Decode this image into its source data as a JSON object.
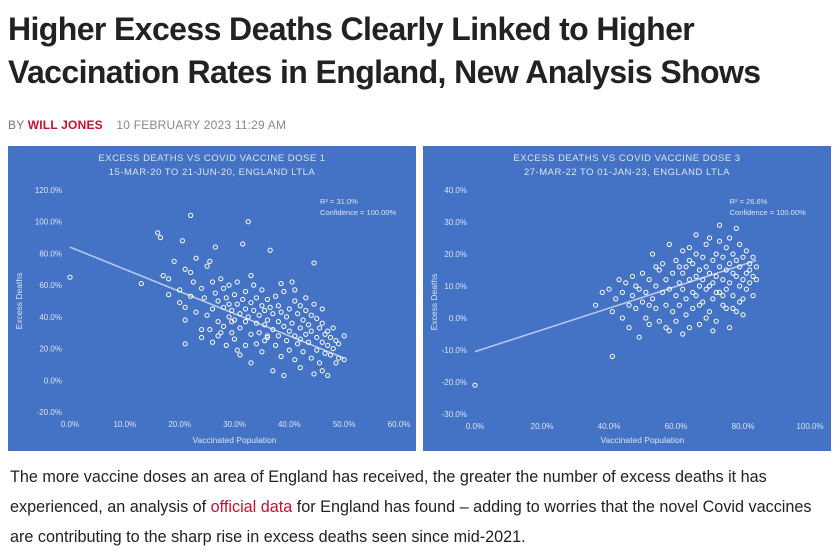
{
  "headline": "Higher Excess Deaths Clearly Linked to Higher Vaccination Rates in England, New Analysis Shows",
  "byline": {
    "prefix": "BY",
    "author": "WILL JONES",
    "date": "10 FEBRUARY 2023 11:29 AM"
  },
  "article": {
    "text_before": "The more vaccine doses an area of England has received, the greater the number of excess deaths it has experienced, an analysis of ",
    "link": "official data",
    "text_after": " for England has found – adding to worries that the novel Covid vaccines are contributing to the sharp rise in excess deaths seen since mid-2021."
  },
  "colors": {
    "chart_bg": "#4472c4",
    "author": "#c8102e",
    "link": "#c8102e"
  },
  "chart_data": [
    {
      "type": "scatter",
      "title": "EXCESS DEATHS VS COVID VACCINE DOSE 1",
      "subtitle": "15-MAR-20 TO 21-JUN-20, ENGLAND LTLA",
      "xlabel": "Vaccinated Population",
      "ylabel": "Excess Deaths",
      "xlim": [
        0,
        60
      ],
      "ylim": [
        -20,
        120
      ],
      "xticks": [
        "0.0%",
        "10.0%",
        "20.0%",
        "30.0%",
        "40.0%",
        "50.0%",
        "60.0%"
      ],
      "yticks": [
        "-20.0%",
        "0.0%",
        "20.0%",
        "40.0%",
        "60.0%",
        "80.0%",
        "100.0%",
        "120.0%"
      ],
      "annotation": [
        "R² = 31.0%",
        "Confidence = 100.00%"
      ],
      "trendline": [
        [
          0,
          84
        ],
        [
          50,
          14
        ]
      ],
      "points": [
        [
          0,
          65
        ],
        [
          13,
          61
        ],
        [
          16,
          93
        ],
        [
          16.5,
          90
        ],
        [
          17,
          66
        ],
        [
          18,
          64
        ],
        [
          18,
          54
        ],
        [
          19,
          75
        ],
        [
          20,
          49
        ],
        [
          20,
          57
        ],
        [
          20.5,
          88
        ],
        [
          21,
          70
        ],
        [
          21,
          46
        ],
        [
          21,
          38
        ],
        [
          21,
          23
        ],
        [
          22,
          104
        ],
        [
          22,
          68
        ],
        [
          22.5,
          62
        ],
        [
          22,
          53
        ],
        [
          23,
          77
        ],
        [
          23,
          43
        ],
        [
          24,
          58
        ],
        [
          24,
          32
        ],
        [
          24.5,
          52
        ],
        [
          25,
          72
        ],
        [
          25,
          41
        ],
        [
          25.5,
          75
        ],
        [
          25.5,
          32
        ],
        [
          26,
          45
        ],
        [
          26,
          62
        ],
        [
          26,
          24
        ],
        [
          26.5,
          55
        ],
        [
          27,
          37
        ],
        [
          27,
          50
        ],
        [
          27,
          28
        ],
        [
          27.5,
          64
        ],
        [
          28,
          58
        ],
        [
          28,
          46
        ],
        [
          28,
          34
        ],
        [
          28.5,
          22
        ],
        [
          28.5,
          52
        ],
        [
          29,
          40
        ],
        [
          29,
          60
        ],
        [
          29,
          48
        ],
        [
          29.5,
          30
        ],
        [
          29.5,
          44
        ],
        [
          30,
          54
        ],
        [
          30,
          38
        ],
        [
          30,
          26
        ],
        [
          30.5,
          48
        ],
        [
          30.5,
          62
        ],
        [
          31,
          33
        ],
        [
          31,
          42
        ],
        [
          31,
          16
        ],
        [
          31.5,
          51
        ],
        [
          31.5,
          86
        ],
        [
          32,
          45
        ],
        [
          32,
          37
        ],
        [
          32,
          56
        ],
        [
          32,
          22
        ],
        [
          32.5,
          100
        ],
        [
          32.5,
          40
        ],
        [
          33,
          29
        ],
        [
          33,
          49
        ],
        [
          33,
          11
        ],
        [
          33.5,
          44
        ],
        [
          33.5,
          60
        ],
        [
          34,
          36
        ],
        [
          34,
          52
        ],
        [
          34,
          23
        ],
        [
          34.5,
          41
        ],
        [
          34.5,
          30
        ],
        [
          35,
          47
        ],
        [
          35,
          57
        ],
        [
          35,
          18
        ],
        [
          35.5,
          35
        ],
        [
          35.5,
          44
        ],
        [
          36,
          27
        ],
        [
          36,
          51
        ],
        [
          36,
          38
        ],
        [
          36.5,
          82
        ],
        [
          36.5,
          46
        ],
        [
          37,
          32
        ],
        [
          37,
          42
        ],
        [
          37,
          6
        ],
        [
          37.5,
          22
        ],
        [
          37.5,
          53
        ],
        [
          38,
          37
        ],
        [
          38,
          47
        ],
        [
          38,
          28
        ],
        [
          38.5,
          15
        ],
        [
          38.5,
          43
        ],
        [
          39,
          34
        ],
        [
          39,
          56
        ],
        [
          39,
          3
        ],
        [
          39.5,
          25
        ],
        [
          39.5,
          40
        ],
        [
          40,
          31
        ],
        [
          40,
          45
        ],
        [
          40,
          19
        ],
        [
          40.5,
          62
        ],
        [
          40.5,
          36
        ],
        [
          41,
          28
        ],
        [
          41,
          50
        ],
        [
          41,
          13
        ],
        [
          41.5,
          42
        ],
        [
          41.5,
          23
        ],
        [
          42,
          33
        ],
        [
          42,
          47
        ],
        [
          42,
          8
        ],
        [
          42.5,
          38
        ],
        [
          42.5,
          18
        ],
        [
          43,
          29
        ],
        [
          43,
          44
        ],
        [
          43,
          52
        ],
        [
          43.5,
          24
        ],
        [
          43.5,
          35
        ],
        [
          44,
          14
        ],
        [
          44,
          31
        ],
        [
          44,
          41
        ],
        [
          44.5,
          4
        ],
        [
          44.5,
          74
        ],
        [
          45,
          27
        ],
        [
          45,
          39
        ],
        [
          45,
          19
        ],
        [
          45.5,
          33
        ],
        [
          45.5,
          11
        ],
        [
          46,
          24
        ],
        [
          46,
          36
        ],
        [
          46,
          6
        ],
        [
          46.5,
          29
        ],
        [
          46.5,
          17
        ],
        [
          47,
          31
        ],
        [
          47,
          22
        ],
        [
          47,
          3
        ],
        [
          47.5,
          27
        ],
        [
          47.5,
          16
        ],
        [
          48,
          33
        ],
        [
          48,
          20
        ],
        [
          48.5,
          25
        ],
        [
          48.5,
          11
        ],
        [
          49,
          23
        ],
        [
          49,
          14
        ],
        [
          50,
          28
        ],
        [
          50,
          13
        ],
        [
          27.5,
          30
        ],
        [
          33,
          66
        ],
        [
          29.5,
          37
        ],
        [
          36,
          28
        ],
        [
          41,
          57
        ],
        [
          38.5,
          61
        ],
        [
          44.5,
          48
        ],
        [
          35.5,
          25
        ],
        [
          30.5,
          19
        ],
        [
          42,
          26
        ],
        [
          46,
          45
        ],
        [
          26.5,
          84
        ],
        [
          24,
          27
        ]
      ]
    },
    {
      "type": "scatter",
      "title": "EXCESS DEATHS VS COVID VACCINE DOSE 3",
      "subtitle": "27-MAR-22 TO 01-JAN-23, ENGLAND LTLA",
      "xlabel": "Vaccinated Population",
      "ylabel": "Excess Deaths",
      "xlim": [
        0,
        100
      ],
      "ylim": [
        -30,
        40
      ],
      "xticks": [
        "0.0%",
        "20.0%",
        "40.0%",
        "60.0%",
        "80.0%",
        "100.0%"
      ],
      "yticks": [
        "-30.0%",
        "-20.0%",
        "-10.0%",
        "0.0%",
        "10.0%",
        "20.0%",
        "30.0%",
        "40.0%"
      ],
      "annotation": [
        "R² = 26.6%",
        "Confidence = 100.00%"
      ],
      "trendline": [
        [
          0,
          -10.5
        ],
        [
          84,
          18
        ]
      ],
      "points": [
        [
          0,
          -21
        ],
        [
          36,
          4
        ],
        [
          38,
          8
        ],
        [
          40,
          9
        ],
        [
          41,
          -12
        ],
        [
          41,
          2
        ],
        [
          42,
          6
        ],
        [
          43,
          12
        ],
        [
          44,
          0
        ],
        [
          44,
          8
        ],
        [
          45,
          11
        ],
        [
          46,
          4
        ],
        [
          46,
          -3
        ],
        [
          47,
          13
        ],
        [
          47,
          7
        ],
        [
          48,
          10
        ],
        [
          48,
          3
        ],
        [
          49,
          -6
        ],
        [
          49,
          9
        ],
        [
          50,
          14
        ],
        [
          50,
          5
        ],
        [
          51,
          8
        ],
        [
          51,
          0
        ],
        [
          52,
          12
        ],
        [
          52,
          -2
        ],
        [
          53,
          6
        ],
        [
          53,
          20
        ],
        [
          54,
          10
        ],
        [
          54,
          3
        ],
        [
          55,
          15
        ],
        [
          55,
          -1
        ],
        [
          56,
          8
        ],
        [
          56,
          17
        ],
        [
          57,
          4
        ],
        [
          57,
          12
        ],
        [
          58,
          -4
        ],
        [
          58,
          9
        ],
        [
          59,
          14
        ],
        [
          59,
          2
        ],
        [
          60,
          18
        ],
        [
          60,
          7
        ],
        [
          60,
          -1
        ],
        [
          61,
          11
        ],
        [
          61,
          4
        ],
        [
          62,
          21
        ],
        [
          62,
          9
        ],
        [
          62,
          14
        ],
        [
          63,
          6
        ],
        [
          63,
          16
        ],
        [
          63,
          1
        ],
        [
          64,
          12
        ],
        [
          64,
          22
        ],
        [
          64,
          -3
        ],
        [
          65,
          8
        ],
        [
          65,
          17
        ],
        [
          65,
          3
        ],
        [
          66,
          13
        ],
        [
          66,
          20
        ],
        [
          66,
          7
        ],
        [
          67,
          10
        ],
        [
          67,
          -2
        ],
        [
          67,
          15
        ],
        [
          68,
          19
        ],
        [
          68,
          5
        ],
        [
          68,
          12
        ],
        [
          69,
          23
        ],
        [
          69,
          9
        ],
        [
          69,
          16
        ],
        [
          70,
          14
        ],
        [
          70,
          2
        ],
        [
          70,
          25
        ],
        [
          71,
          11
        ],
        [
          71,
          18
        ],
        [
          71,
          6
        ],
        [
          72,
          20
        ],
        [
          72,
          13
        ],
        [
          72,
          -1
        ],
        [
          73,
          16
        ],
        [
          73,
          8
        ],
        [
          73,
          24
        ],
        [
          74,
          12
        ],
        [
          74,
          19
        ],
        [
          74,
          4
        ],
        [
          75,
          22
        ],
        [
          75,
          15
        ],
        [
          75,
          9
        ],
        [
          76,
          17
        ],
        [
          76,
          11
        ],
        [
          76,
          25
        ],
        [
          77,
          14
        ],
        [
          77,
          20
        ],
        [
          77,
          7
        ],
        [
          78,
          13
        ],
        [
          78,
          18
        ],
        [
          78,
          2
        ],
        [
          79,
          16
        ],
        [
          79,
          23
        ],
        [
          79,
          10
        ],
        [
          80,
          12
        ],
        [
          80,
          19
        ],
        [
          80,
          6
        ],
        [
          81,
          14
        ],
        [
          81,
          21
        ],
        [
          81,
          9
        ],
        [
          82,
          15
        ],
        [
          82,
          11
        ],
        [
          82,
          17
        ],
        [
          83,
          13
        ],
        [
          83,
          19
        ],
        [
          84,
          12
        ],
        [
          84,
          16
        ],
        [
          76,
          -3
        ],
        [
          78,
          28
        ],
        [
          66,
          26
        ],
        [
          71,
          -4
        ],
        [
          62,
          -5
        ],
        [
          58,
          23
        ],
        [
          64,
          18
        ],
        [
          69,
          0
        ],
        [
          73,
          29
        ],
        [
          80,
          1
        ],
        [
          75,
          3
        ],
        [
          72,
          8
        ],
        [
          67,
          4
        ],
        [
          61,
          16
        ],
        [
          70,
          10
        ],
        [
          74,
          7
        ],
        [
          77,
          3
        ],
        [
          79,
          5
        ],
        [
          83,
          7
        ],
        [
          57,
          -3
        ],
        [
          54,
          16
        ],
        [
          52,
          4
        ]
      ]
    }
  ]
}
